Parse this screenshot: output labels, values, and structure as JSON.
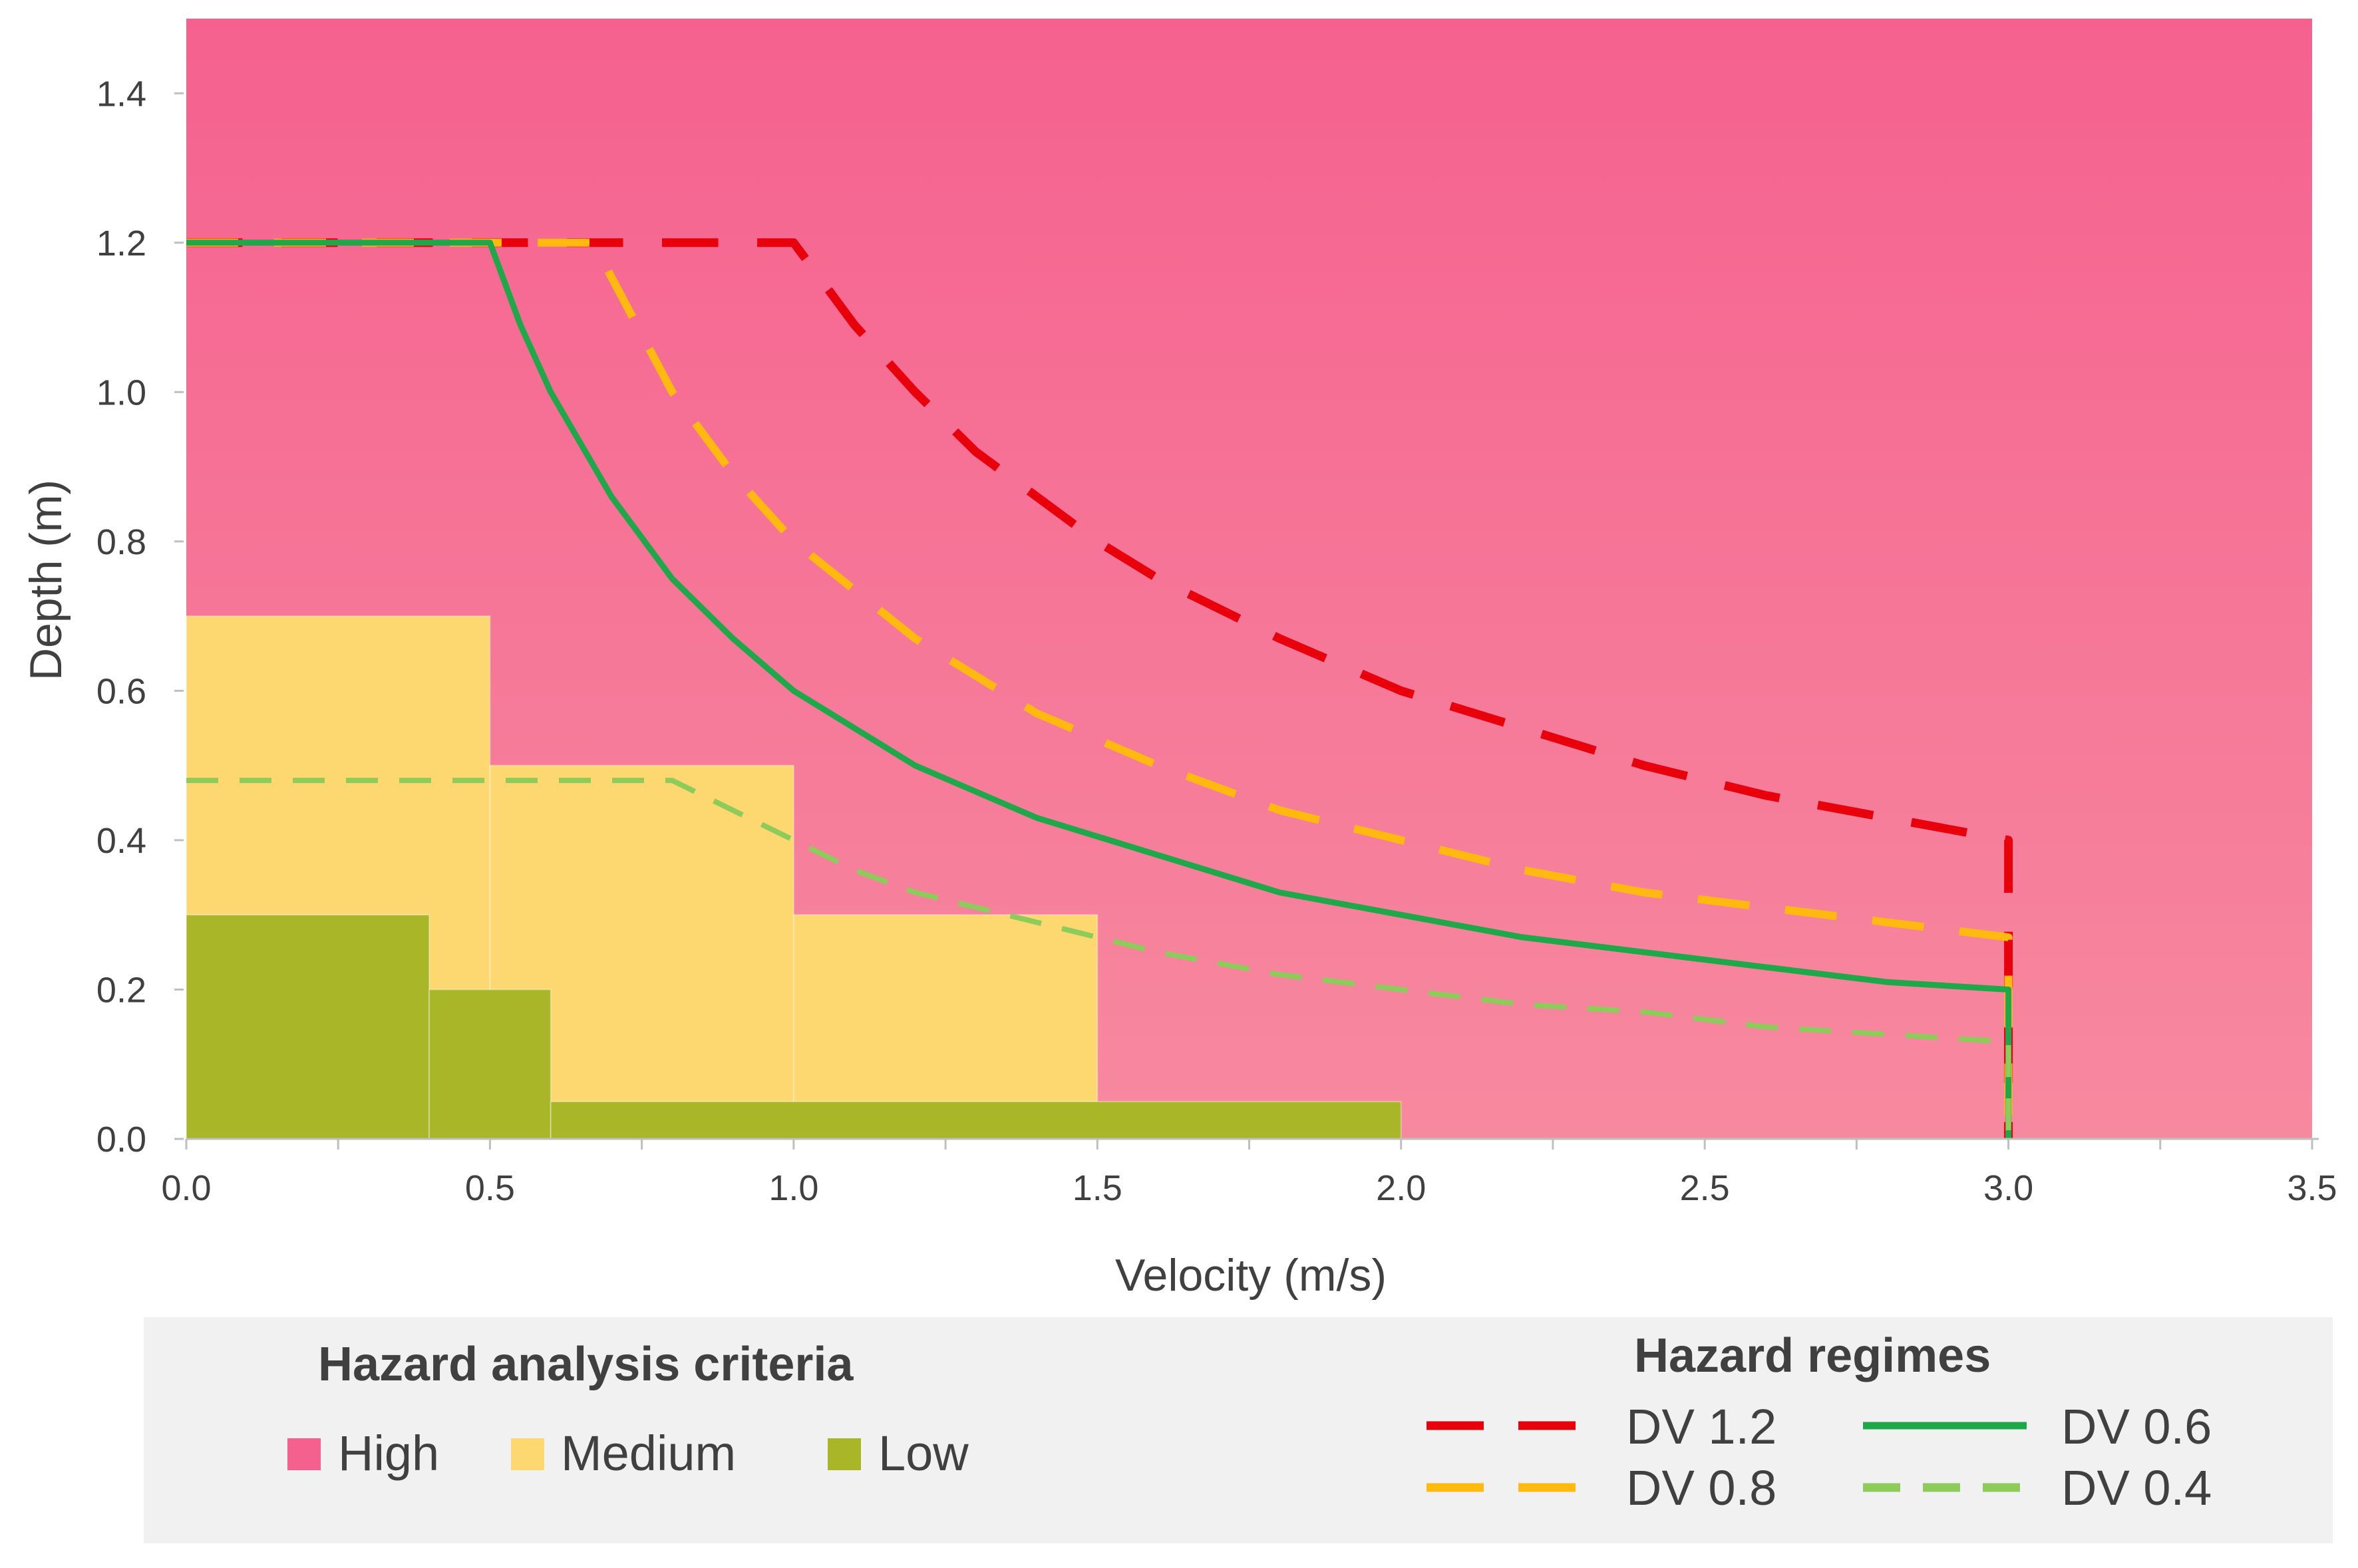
{
  "chart_data": {
    "type": "area",
    "xlabel": "Velocity (m/s)",
    "ylabel": "Depth (m)",
    "xlim": [
      0,
      3.5
    ],
    "ylim": [
      0,
      1.5
    ],
    "xticks": [
      "0.0",
      "0.5",
      "1.0",
      "1.5",
      "2.0",
      "2.5",
      "3.0",
      "3.5"
    ],
    "yticks": [
      "0.0",
      "0.2",
      "0.4",
      "0.6",
      "0.8",
      "1.0",
      "1.2",
      "1.4"
    ],
    "hazard_zones": [
      {
        "name": "High",
        "color": "#F5618F",
        "color_bottom": "#F7899F",
        "blocks": [
          {
            "x0": 0,
            "x1": 3.5,
            "y0": 0,
            "y1": 1.5
          }
        ]
      },
      {
        "name": "Medium",
        "color": "#FDD870",
        "blocks": [
          {
            "x0": 0,
            "x1": 0.5,
            "y0": 0,
            "y1": 0.7
          },
          {
            "x0": 0.5,
            "x1": 1.0,
            "y0": 0,
            "y1": 0.5
          },
          {
            "x0": 1.0,
            "x1": 1.5,
            "y0": 0,
            "y1": 0.3
          }
        ]
      },
      {
        "name": "Low",
        "color": "#A8B628",
        "blocks": [
          {
            "x0": 0,
            "x1": 0.4,
            "y0": 0,
            "y1": 0.3
          },
          {
            "x0": 0.4,
            "x1": 0.6,
            "y0": 0,
            "y1": 0.2
          },
          {
            "x0": 0.6,
            "x1": 2.0,
            "y0": 0,
            "y1": 0.05
          }
        ]
      }
    ],
    "series": [
      {
        "name": "DV 1.2",
        "color": "#E8000B",
        "dash": "dash",
        "width": 13,
        "x": [
          0,
          1.0,
          1.1,
          1.2,
          1.3,
          1.4,
          1.5,
          1.6,
          1.8,
          2.0,
          2.2,
          2.4,
          2.6,
          2.8,
          3.0,
          3.0
        ],
        "y": [
          1.2,
          1.2,
          1.09,
          1.0,
          0.92,
          0.86,
          0.8,
          0.75,
          0.67,
          0.6,
          0.55,
          0.5,
          0.46,
          0.43,
          0.4,
          0.0
        ]
      },
      {
        "name": "DV 0.8",
        "color": "#FFB90F",
        "dash": "dash",
        "width": 12,
        "x": [
          0,
          0.67,
          0.8,
          0.9,
          1.0,
          1.2,
          1.4,
          1.6,
          1.8,
          2.0,
          2.2,
          2.4,
          2.6,
          2.8,
          3.0,
          3.0
        ],
        "y": [
          1.2,
          1.2,
          1.0,
          0.89,
          0.8,
          0.67,
          0.57,
          0.5,
          0.44,
          0.4,
          0.36,
          0.33,
          0.31,
          0.29,
          0.27,
          0.0
        ]
      },
      {
        "name": "DV 0.6",
        "color": "#1FA84A",
        "dash": "solid",
        "width": 9,
        "x": [
          0,
          0.5,
          0.55,
          0.6,
          0.7,
          0.8,
          0.9,
          1.0,
          1.2,
          1.4,
          1.6,
          1.8,
          2.0,
          2.2,
          2.4,
          2.6,
          2.8,
          3.0,
          3.0
        ],
        "y": [
          1.2,
          1.2,
          1.09,
          1.0,
          0.86,
          0.75,
          0.67,
          0.6,
          0.5,
          0.43,
          0.38,
          0.33,
          0.3,
          0.27,
          0.25,
          0.23,
          0.21,
          0.2,
          0.0
        ]
      },
      {
        "name": "DV 0.4",
        "color": "#8DCB5A",
        "dash": "dash",
        "width": 8,
        "x": [
          0,
          0.8,
          0.9,
          1.0,
          1.1,
          1.2,
          1.4,
          1.6,
          1.8,
          2.0,
          2.2,
          2.4,
          2.6,
          2.8,
          3.0,
          3.0
        ],
        "y": [
          0.48,
          0.48,
          0.44,
          0.4,
          0.36,
          0.33,
          0.29,
          0.25,
          0.22,
          0.2,
          0.18,
          0.17,
          0.15,
          0.14,
          0.13,
          0.0
        ]
      }
    ],
    "legend_criteria": {
      "title": "Hazard analysis criteria",
      "items": [
        {
          "label": "High",
          "color": "#F5618F"
        },
        {
          "label": "Medium",
          "color": "#FDD870"
        },
        {
          "label": "Low",
          "color": "#A8B628"
        }
      ]
    },
    "legend_regimes": {
      "title": "Hazard regimes",
      "items": [
        {
          "label": "DV 1.2",
          "color": "#E8000B",
          "dash": "dash"
        },
        {
          "label": "DV 0.6",
          "color": "#1FA84A",
          "dash": "solid"
        },
        {
          "label": "DV 0.8",
          "color": "#FFB90F",
          "dash": "dash"
        },
        {
          "label": "DV 0.4",
          "color": "#8DCB5A",
          "dash": "dash"
        }
      ]
    }
  }
}
